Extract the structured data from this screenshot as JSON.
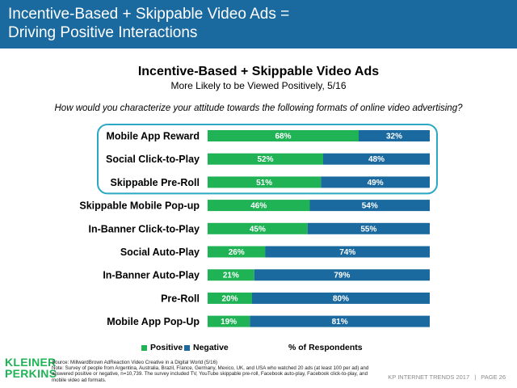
{
  "header": {
    "title": "Incentive-Based + Skippable Video Ads =\nDriving Positive Interactions"
  },
  "chart_data": {
    "type": "bar",
    "orientation": "horizontal",
    "stacked": true,
    "title": "Incentive-Based + Skippable Video Ads",
    "subtitle": "More Likely to be Viewed Positively, 5/16",
    "question": "How would you characterize your attitude towards the following formats of online video advertising?",
    "categories": [
      "Mobile App Reward",
      "Social Click-to-Play",
      "Skippable Pre-Roll",
      "Skippable Mobile Pop-up",
      "In-Banner Click-to-Play",
      "Social Auto-Play",
      "In-Banner Auto-Play",
      "Pre-Roll",
      "Mobile App Pop-Up"
    ],
    "series": [
      {
        "name": "Positive",
        "color": "#1fb356",
        "values": [
          68,
          52,
          51,
          46,
          45,
          26,
          21,
          20,
          19
        ]
      },
      {
        "name": "Negative",
        "color": "#1a6aa0",
        "values": [
          32,
          48,
          49,
          54,
          55,
          74,
          79,
          80,
          81
        ]
      }
    ],
    "xlabel": "% of Respondents",
    "xlim": [
      0,
      100
    ],
    "highlighted_categories": [
      "Mobile App Reward",
      "Social Click-to-Play",
      "Skippable Pre-Roll"
    ],
    "highlight_color": "#2ba8c4",
    "legend_position": "bottom",
    "grid": false
  },
  "footer": {
    "logo_line1": "KLEINER",
    "logo_line2": "PERKINS",
    "source": "Source: MillwardBrown AdReaction Video Creative in a Digital World (5/16)",
    "note": "Note: Survey of people from Argentina, Australia, Brazil, France, Germany, Mexico, UK, and USA who watched 20 ads (at least 100 per ad) and answered positive or negative, n=10,739. The survey included TV, YouTube skippable pre-roll, Facebook auto-play, Facebook click-to-play, and mobile video ad formats.",
    "trends": "KP INTERNET TRENDS 2017",
    "separator": "|",
    "page": "PAGE 26"
  }
}
